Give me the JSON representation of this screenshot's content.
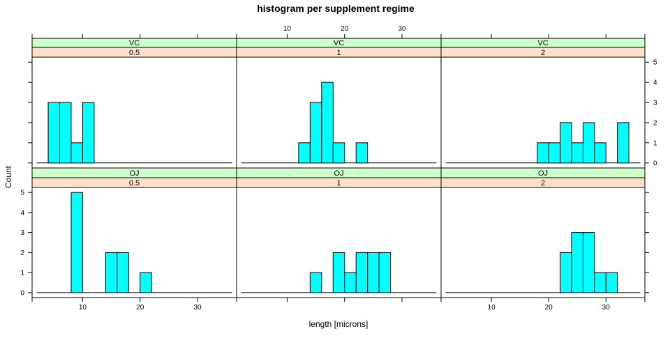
{
  "chart_data": {
    "type": "bar",
    "title": "histogram per supplement regime",
    "xlabel": "length [microns]",
    "ylabel": "Count",
    "xlim": [
      1.2,
      36.8
    ],
    "ylim": [
      -0.25,
      5.25
    ],
    "x_ticks": [
      10,
      20,
      30
    ],
    "y_ticks": [
      0,
      1,
      2,
      3,
      4,
      5
    ],
    "bin_width": 2,
    "colors": {
      "bar_fill": "#00ffff",
      "strip_top": "#ccffcc",
      "strip_bottom": "#ffe0cc"
    },
    "panels": [
      {
        "supp": "VC",
        "dose": "0.5",
        "bins": [
          [
            4,
            6,
            3
          ],
          [
            6,
            8,
            3
          ],
          [
            8,
            10,
            1
          ],
          [
            10,
            12,
            3
          ]
        ]
      },
      {
        "supp": "VC",
        "dose": "1",
        "bins": [
          [
            12,
            14,
            1
          ],
          [
            14,
            16,
            3
          ],
          [
            16,
            18,
            4
          ],
          [
            18,
            20,
            1
          ],
          [
            22,
            24,
            1
          ]
        ]
      },
      {
        "supp": "VC",
        "dose": "2",
        "bins": [
          [
            18,
            20,
            1
          ],
          [
            20,
            22,
            1
          ],
          [
            22,
            24,
            2
          ],
          [
            24,
            26,
            1
          ],
          [
            26,
            28,
            2
          ],
          [
            28,
            30,
            1
          ],
          [
            32,
            34,
            2
          ]
        ]
      },
      {
        "supp": "OJ",
        "dose": "0.5",
        "bins": [
          [
            8,
            10,
            5
          ],
          [
            14,
            16,
            2
          ],
          [
            16,
            18,
            2
          ],
          [
            20,
            22,
            1
          ]
        ]
      },
      {
        "supp": "OJ",
        "dose": "1",
        "bins": [
          [
            14,
            16,
            1
          ],
          [
            18,
            20,
            2
          ],
          [
            20,
            22,
            1
          ],
          [
            22,
            24,
            2
          ],
          [
            24,
            26,
            2
          ],
          [
            26,
            28,
            2
          ]
        ]
      },
      {
        "supp": "OJ",
        "dose": "2",
        "bins": [
          [
            22,
            24,
            2
          ],
          [
            24,
            26,
            3
          ],
          [
            26,
            28,
            3
          ],
          [
            28,
            30,
            1
          ],
          [
            30,
            32,
            1
          ]
        ]
      }
    ]
  }
}
